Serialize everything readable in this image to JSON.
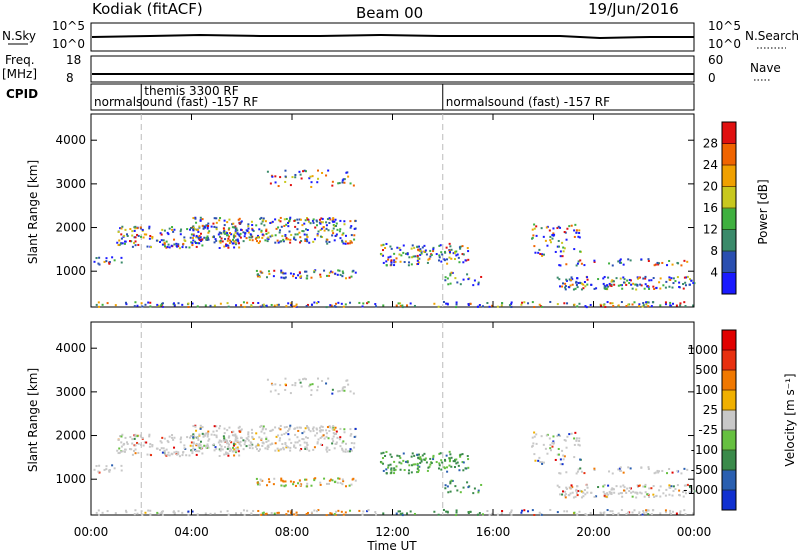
{
  "header": {
    "station": "Kodiak (fitACF)",
    "beam": "Beam 00",
    "date": "19/Jun/2016"
  },
  "top_panels": {
    "nsky_label": "N.Sky",
    "nsearch_label": "N.Search",
    "freq_label": "Freq.",
    "freq_unit": "[MHz]",
    "nave_label": "Nave",
    "cpid_label": "CPID",
    "nsky_ticks": [
      "10^5",
      "10^0"
    ],
    "nsearch_ticks": [
      "10^5",
      "10^0"
    ],
    "freq_ticks": [
      "18",
      "8"
    ],
    "nave_ticks": [
      "60",
      "0"
    ],
    "cpid_entries": [
      {
        "label": "normalsound (fast) -157 RF",
        "start_h": 0
      },
      {
        "label": "themis 3300 RF",
        "start_h": 2
      },
      {
        "label": "normalsound (fast) -157 RF",
        "start_h": 14
      }
    ]
  },
  "x_axis": {
    "label": "Time UT",
    "ticks": [
      "00:00",
      "04:00",
      "08:00",
      "12:00",
      "16:00",
      "20:00",
      "00:00"
    ]
  },
  "power_panel": {
    "ylabel": "Slant Range [km]",
    "yticks": [
      "4000",
      "3000",
      "2000",
      "1000"
    ],
    "colorbar_label": "Power [dB]",
    "colorbar_ticks": [
      "28",
      "24",
      "20",
      "16",
      "12",
      "8",
      "4"
    ]
  },
  "velocity_panel": {
    "ylabel": "Slant Range [km]",
    "yticks": [
      "4000",
      "3000",
      "2000",
      "1000"
    ],
    "colorbar_label": "Velocity [m s⁻¹]",
    "colorbar_ticks": [
      "1000",
      "500",
      "100",
      "25",
      "-25",
      "-100",
      "-500",
      "-1000"
    ]
  },
  "chart_data": {
    "type": "heatmap",
    "xlabel": "Time UT",
    "ylabel": "Slant Range [km]",
    "xlim_hours": [
      0,
      24
    ],
    "ylim_km": [
      180,
      4600
    ],
    "power_colors": [
      "#1a1aff",
      "#2a4fb0",
      "#3a8a6a",
      "#3fb03f",
      "#c8c81e",
      "#f0a000",
      "#f06400",
      "#e01010"
    ],
    "velocity_colors": [
      "#1030d0",
      "#2a5fb0",
      "#3a8a4a",
      "#66c040",
      "#c8c8c8",
      "#f0b000",
      "#f07800",
      "#e83010",
      "#e00000"
    ],
    "scatter_regions": [
      {
        "t_start": 0.0,
        "t_end": 24.0,
        "r_min": 200,
        "r_max": 320,
        "density": 0.5
      },
      {
        "t_start": 0.0,
        "t_end": 1.2,
        "r_min": 1150,
        "r_max": 1350,
        "density": 0.5
      },
      {
        "t_start": 1.0,
        "t_end": 6.0,
        "r_min": 1550,
        "r_max": 2050,
        "density": 0.55
      },
      {
        "t_start": 4.0,
        "t_end": 10.5,
        "r_min": 1650,
        "r_max": 2250,
        "density": 0.6
      },
      {
        "t_start": 6.5,
        "t_end": 10.5,
        "r_min": 850,
        "r_max": 1050,
        "density": 0.6
      },
      {
        "t_start": 7.0,
        "t_end": 10.5,
        "r_min": 2950,
        "r_max": 3350,
        "density": 0.25
      },
      {
        "t_start": 11.5,
        "t_end": 15.0,
        "r_min": 1150,
        "r_max": 1650,
        "density": 0.55
      },
      {
        "t_start": 14.0,
        "t_end": 15.5,
        "r_min": 700,
        "r_max": 1000,
        "density": 0.35
      },
      {
        "t_start": 17.5,
        "t_end": 19.5,
        "r_min": 1300,
        "r_max": 2100,
        "density": 0.3
      },
      {
        "t_start": 18.5,
        "t_end": 24.0,
        "r_min": 600,
        "r_max": 900,
        "density": 0.65
      },
      {
        "t_start": 18.5,
        "t_end": 24.0,
        "r_min": 1150,
        "r_max": 1300,
        "density": 0.35
      }
    ]
  }
}
